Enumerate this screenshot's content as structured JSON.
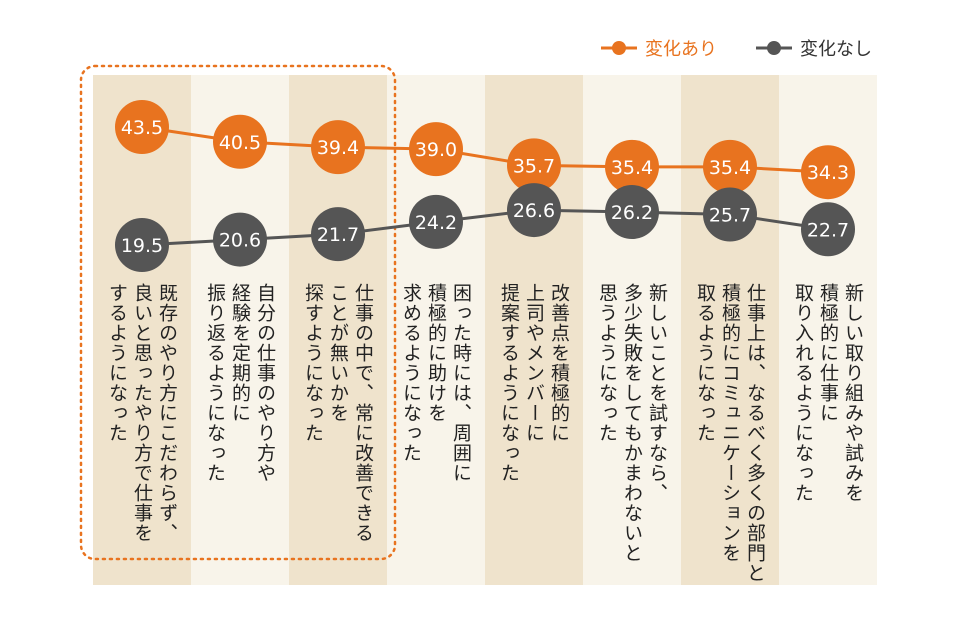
{
  "chart_data": {
    "type": "line",
    "categories": [
      "既存のやり方にこだわらず、\n良いと思ったやり方で仕事を\nするようになった",
      "自分の仕事のやり方や\n経験を定期的に\n振り返るようになった",
      "仕事の中で、常に改善できる\nことが無いかを\n探すようになった",
      "困った時には、周囲に\n積極的に助けを\n求めるようになった",
      "改善点を積極的に\n上司やメンバーに\n提案するようになった",
      "新しいことを試すなら、\n多少失敗をしてもかまわないと\n思うようになった",
      "仕事上は、なるべく多くの部門と\n積極的にコミュニケーションを\n取るようになった",
      "新しい取り組みや試みを\n積極的に仕事に\n取り入れるようになった"
    ],
    "series": [
      {
        "name": "変化あり",
        "color": "#E8731F",
        "values": [
          43.5,
          40.5,
          39.4,
          39.0,
          35.7,
          35.4,
          35.4,
          34.3
        ]
      },
      {
        "name": "変化なし",
        "color": "#555555",
        "values": [
          19.5,
          20.6,
          21.7,
          24.2,
          26.6,
          26.2,
          25.7,
          22.7
        ]
      }
    ],
    "highlight": {
      "categories": [
        0,
        1,
        2
      ],
      "style": "dotted-outline",
      "color": "#E8731F"
    },
    "column_colors": [
      "#EFE3CC",
      "#F8F4EA"
    ],
    "legend_position": "top-right",
    "xlabel": "",
    "ylabel": ""
  }
}
